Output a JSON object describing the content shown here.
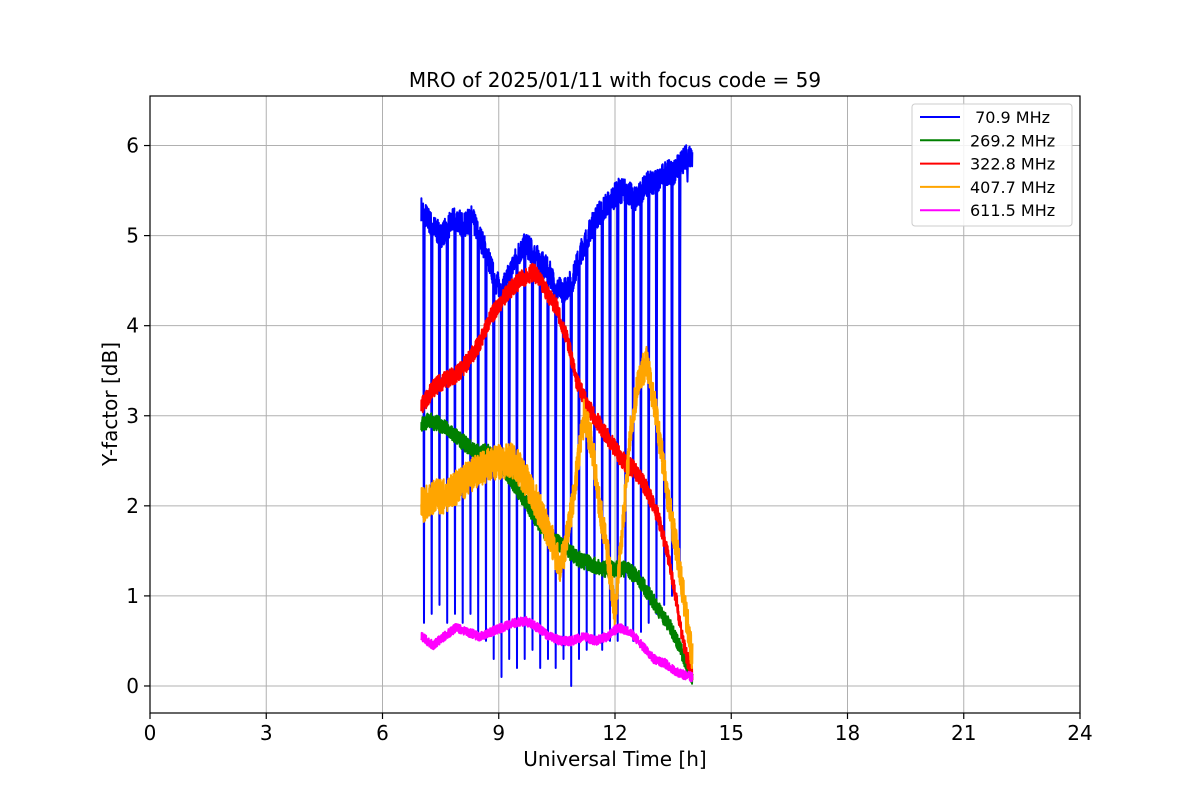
{
  "chart_data": {
    "type": "line",
    "title": "MRO of 2025/01/11 with focus code = 59",
    "xlabel": "Universal Time [h]",
    "ylabel": "Y-factor [dB]",
    "xlim": [
      0,
      24
    ],
    "ylim": [
      -0.3,
      6.55
    ],
    "xticks": [
      0,
      3,
      6,
      9,
      12,
      15,
      18,
      21,
      24
    ],
    "yticks": [
      0,
      1,
      2,
      3,
      4,
      5,
      6
    ],
    "grid": true,
    "legend_position": "top-right",
    "series": [
      {
        "name": " 70.9 MHz",
        "color": "#0000ff",
        "x": [
          7.0,
          7.15,
          7.3,
          7.5,
          7.7,
          7.9,
          8.1,
          8.3,
          8.5,
          8.7,
          8.9,
          9.1,
          9.3,
          9.5,
          9.7,
          9.9,
          10.1,
          10.3,
          10.5,
          10.7,
          10.9,
          11.1,
          11.3,
          11.5,
          11.7,
          11.9,
          12.1,
          12.3,
          12.5,
          12.7,
          12.9,
          13.1,
          13.3,
          13.5,
          13.7,
          13.9,
          14.0
        ],
        "y": [
          5.3,
          5.2,
          5.1,
          5.0,
          5.1,
          5.2,
          5.1,
          5.2,
          5.0,
          4.8,
          4.5,
          4.4,
          4.6,
          4.8,
          4.9,
          4.8,
          4.7,
          4.6,
          4.4,
          4.4,
          4.5,
          4.8,
          5.0,
          5.2,
          5.3,
          5.4,
          5.5,
          5.5,
          5.4,
          5.5,
          5.6,
          5.6,
          5.7,
          5.7,
          5.8,
          5.9,
          5.9
        ],
        "dips": [
          [
            7.05,
            0.7
          ],
          [
            7.25,
            0.8
          ],
          [
            7.45,
            0.9
          ],
          [
            7.65,
            0.7
          ],
          [
            7.85,
            0.8
          ],
          [
            8.05,
            0.7
          ],
          [
            8.25,
            0.8
          ],
          [
            8.45,
            0.6
          ],
          [
            8.65,
            0.5
          ],
          [
            8.85,
            0.3
          ],
          [
            9.05,
            0.1
          ],
          [
            9.25,
            0.3
          ],
          [
            9.45,
            0.2
          ],
          [
            9.65,
            0.3
          ],
          [
            9.85,
            0.4
          ],
          [
            10.05,
            0.2
          ],
          [
            10.25,
            0.3
          ],
          [
            10.45,
            0.2
          ],
          [
            10.65,
            0.3
          ],
          [
            10.85,
            0.0
          ],
          [
            11.05,
            0.3
          ],
          [
            11.25,
            0.4
          ],
          [
            11.45,
            0.5
          ],
          [
            11.65,
            0.4
          ],
          [
            11.85,
            0.5
          ],
          [
            12.05,
            0.5
          ],
          [
            12.25,
            0.6
          ],
          [
            12.45,
            0.5
          ],
          [
            12.65,
            0.6
          ],
          [
            12.85,
            0.7
          ],
          [
            13.05,
            0.8
          ],
          [
            13.25,
            0.9
          ],
          [
            13.45,
            1.0
          ],
          [
            13.65,
            1.2
          ],
          [
            13.85,
            5.6
          ]
        ]
      },
      {
        "name": "269.2 MHz",
        "color": "#008000",
        "x": [
          7.0,
          7.2,
          7.5,
          7.8,
          8.1,
          8.4,
          8.7,
          9.0,
          9.3,
          9.6,
          9.9,
          10.2,
          10.5,
          10.8,
          11.1,
          11.4,
          11.7,
          12.0,
          12.3,
          12.6,
          12.9,
          13.2,
          13.5,
          13.7,
          13.9,
          14.0
        ],
        "y": [
          2.9,
          2.95,
          2.9,
          2.8,
          2.7,
          2.6,
          2.6,
          2.5,
          2.3,
          2.1,
          1.9,
          1.7,
          1.6,
          1.5,
          1.4,
          1.35,
          1.3,
          1.3,
          1.3,
          1.2,
          1.0,
          0.8,
          0.6,
          0.4,
          0.2,
          0.1
        ]
      },
      {
        "name": "322.8 MHz",
        "color": "#ff0000",
        "x": [
          7.0,
          7.3,
          7.6,
          7.9,
          8.2,
          8.5,
          8.8,
          9.1,
          9.4,
          9.7,
          9.9,
          10.2,
          10.5,
          10.8,
          11.0,
          11.3,
          11.6,
          11.9,
          12.2,
          12.5,
          12.8,
          13.1,
          13.4,
          13.6,
          13.8,
          14.0
        ],
        "y": [
          3.1,
          3.3,
          3.4,
          3.45,
          3.6,
          3.8,
          4.1,
          4.3,
          4.45,
          4.55,
          4.6,
          4.4,
          4.2,
          3.8,
          3.4,
          3.1,
          2.9,
          2.7,
          2.5,
          2.4,
          2.2,
          1.9,
          1.4,
          0.9,
          0.4,
          0.1
        ]
      },
      {
        "name": "407.7 MHz",
        "color": "#ffa500",
        "x": [
          7.0,
          7.3,
          7.6,
          7.9,
          8.2,
          8.5,
          8.8,
          9.1,
          9.4,
          9.7,
          10.0,
          10.3,
          10.6,
          10.9,
          11.2,
          11.4,
          11.6,
          11.8,
          12.0,
          12.2,
          12.4,
          12.6,
          12.8,
          13.0,
          13.2,
          13.4,
          13.6,
          13.8,
          14.0
        ],
        "y": [
          2.0,
          2.1,
          2.1,
          2.2,
          2.3,
          2.4,
          2.45,
          2.5,
          2.5,
          2.3,
          2.0,
          1.7,
          1.3,
          2.0,
          3.0,
          2.7,
          2.0,
          1.5,
          0.8,
          1.8,
          2.8,
          3.4,
          3.6,
          3.2,
          2.6,
          2.0,
          1.5,
          0.9,
          0.3
        ]
      },
      {
        "name": "611.5 MHz",
        "color": "#ff00ff",
        "x": [
          7.0,
          7.3,
          7.6,
          7.9,
          8.2,
          8.5,
          8.8,
          9.1,
          9.4,
          9.7,
          10.0,
          10.3,
          10.6,
          10.9,
          11.2,
          11.5,
          11.8,
          12.1,
          12.4,
          12.7,
          13.0,
          13.3,
          13.6,
          13.8,
          14.0
        ],
        "y": [
          0.55,
          0.45,
          0.55,
          0.65,
          0.6,
          0.55,
          0.6,
          0.65,
          0.7,
          0.72,
          0.65,
          0.55,
          0.5,
          0.5,
          0.55,
          0.5,
          0.55,
          0.65,
          0.6,
          0.45,
          0.3,
          0.25,
          0.15,
          0.12,
          0.1
        ]
      }
    ]
  }
}
